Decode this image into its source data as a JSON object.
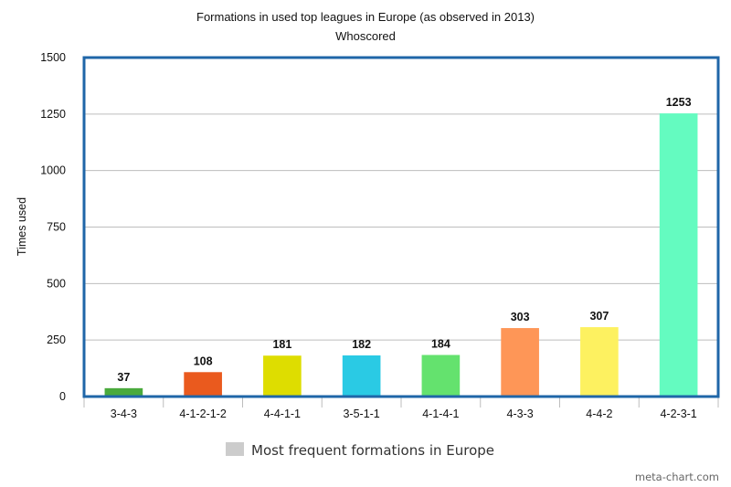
{
  "chart_data": {
    "type": "bar",
    "title": "Formations in used top leagues in Europe (as observed in 2013)",
    "subtitle": "Whoscored",
    "xlabel": "",
    "ylabel": "Times used",
    "ylim": [
      0,
      1500
    ],
    "yticks": [
      0,
      250,
      500,
      750,
      1000,
      1250,
      1500
    ],
    "grid": true,
    "categories": [
      "3-4-3",
      "4-1-2-1-2",
      "4-4-1-1",
      "3-5-1-1",
      "4-1-4-1",
      "4-3-3",
      "4-4-2",
      "4-2-3-1"
    ],
    "values": [
      37,
      108,
      181,
      182,
      184,
      303,
      307,
      1253
    ],
    "colors": [
      "#4aaa3c",
      "#ea5a1e",
      "#dedd00",
      "#2acae4",
      "#64e26e",
      "#fe9657",
      "#fdf160",
      "#64fbc0"
    ],
    "legend": {
      "label": "Most frequent formations in Europe",
      "color": "#cccccc",
      "position": "bottom-center"
    }
  },
  "credit": "meta-chart.com",
  "colors": {
    "frame": "#1f66a8",
    "grid": "#bdbdbd"
  }
}
